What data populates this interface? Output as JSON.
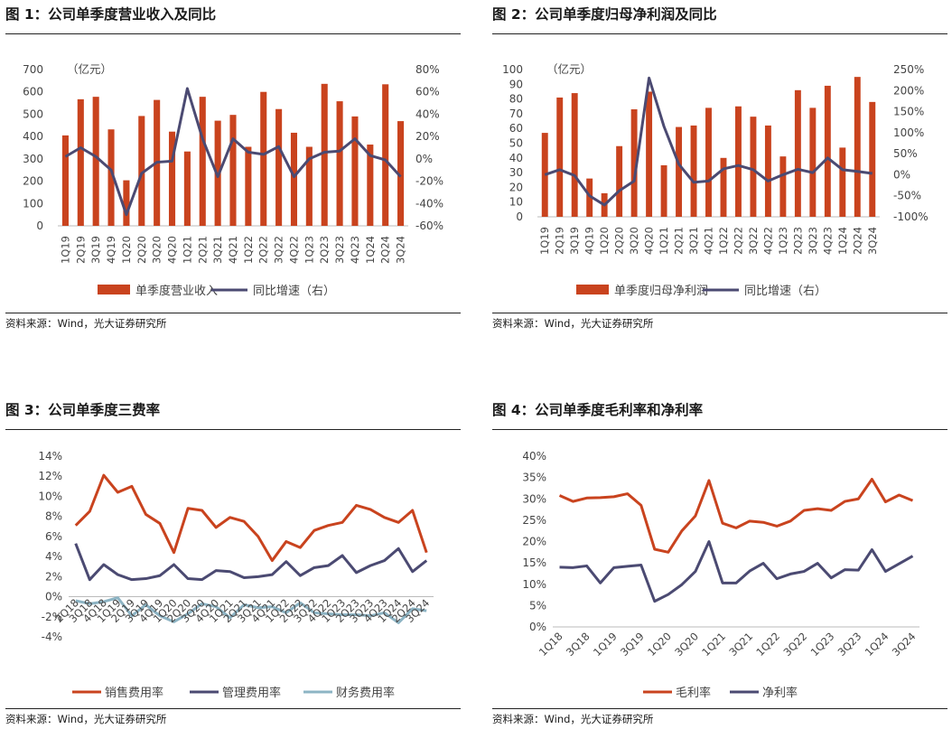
{
  "figures": [
    {
      "title": "图 1：公司单季度营业收入及同比",
      "source": "资料来源：Wind，光大证券研究所"
    },
    {
      "title": "图 2：公司单季度归母净利润及同比",
      "source": "资料来源：Wind，光大证券研究所"
    },
    {
      "title": "图 3：公司单季度三费率",
      "source": "资料来源：Wind，光大证券研究所"
    },
    {
      "title": "图 4：公司单季度毛利率和净利率",
      "source": "资料来源：Wind，光大证券研究所"
    }
  ],
  "colors": {
    "red": "#C9431E",
    "navy": "#4B4A72",
    "teal": "#8DB4C4"
  },
  "chart_data": [
    {
      "type": "bar",
      "categories": [
        "1Q19",
        "2Q19",
        "3Q19",
        "4Q19",
        "1Q20",
        "2Q20",
        "3Q20",
        "4Q20",
        "1Q21",
        "2Q21",
        "3Q21",
        "4Q21",
        "1Q22",
        "2Q22",
        "3Q22",
        "4Q22",
        "1Q23",
        "2Q23",
        "3Q23",
        "4Q23",
        "1Q24",
        "2Q24",
        "3Q24"
      ],
      "unit_label": "（亿元）",
      "ylim": [
        0,
        700
      ],
      "yticks": [
        "0",
        "100",
        "200",
        "300",
        "400",
        "500",
        "600",
        "700"
      ],
      "y2lim": [
        -60,
        80
      ],
      "y2ticks": [
        "-60%",
        "-40%",
        "-20%",
        "0%",
        "20%",
        "40%",
        "60%",
        "80%"
      ],
      "series": [
        {
          "name": "单季度营业收入",
          "axis": "left",
          "kind": "bar",
          "color": "#C9431E",
          "values": [
            405,
            567,
            578,
            432,
            204,
            492,
            564,
            422,
            333,
            578,
            471,
            497,
            354,
            600,
            523,
            417,
            354,
            636,
            558,
            490,
            364,
            634,
            469
          ]
        },
        {
          "name": "同比增速（右）",
          "axis": "right",
          "kind": "line",
          "color": "#4B4A72",
          "values": [
            2,
            10,
            2,
            -10,
            -50,
            -13,
            -3,
            -2,
            63,
            18,
            -16,
            18,
            6,
            4,
            11,
            -16,
            0,
            6,
            7,
            18,
            3,
            -1,
            -16
          ]
        }
      ],
      "legend_position": "bottom"
    },
    {
      "type": "bar",
      "categories": [
        "1Q19",
        "2Q19",
        "3Q19",
        "4Q19",
        "1Q20",
        "2Q20",
        "3Q20",
        "4Q20",
        "1Q21",
        "2Q21",
        "3Q21",
        "4Q21",
        "1Q22",
        "2Q22",
        "3Q22",
        "4Q22",
        "1Q23",
        "2Q23",
        "3Q23",
        "4Q23",
        "1Q24",
        "2Q24",
        "3Q24"
      ],
      "unit_label": "（亿元）",
      "ylim": [
        0,
        100
      ],
      "yticks": [
        "0",
        "10",
        "20",
        "30",
        "40",
        "50",
        "60",
        "70",
        "80",
        "90",
        "100"
      ],
      "y2lim": [
        -100,
        250
      ],
      "y2ticks": [
        "-100%",
        "-50%",
        "0%",
        "50%",
        "100%",
        "150%",
        "200%",
        "250%"
      ],
      "series": [
        {
          "name": "单季度归母净利润",
          "axis": "left",
          "kind": "bar",
          "color": "#C9431E",
          "values": [
            57,
            81,
            84,
            26,
            16,
            48,
            73,
            85,
            35,
            61,
            62,
            74,
            40,
            75,
            68,
            62,
            41,
            86,
            74,
            89,
            47,
            95,
            78
          ]
        },
        {
          "name": "同比增速（右）",
          "axis": "right",
          "kind": "line",
          "color": "#4B4A72",
          "values": [
            0,
            12,
            -2,
            -50,
            -72,
            -38,
            -15,
            230,
            115,
            25,
            -18,
            -15,
            14,
            22,
            12,
            -15,
            0,
            13,
            5,
            40,
            12,
            8,
            3
          ]
        }
      ],
      "legend_position": "bottom"
    },
    {
      "type": "line",
      "categories": [
        "2Q18",
        "3Q18",
        "4Q18",
        "1Q19",
        "2Q19",
        "3Q19",
        "4Q19",
        "1Q20",
        "2Q20",
        "3Q20",
        "4Q20",
        "1Q21",
        "2Q21",
        "3Q21",
        "4Q21",
        "1Q22",
        "2Q22",
        "3Q22",
        "4Q22",
        "1Q23",
        "2Q23",
        "3Q23",
        "4Q23",
        "1Q24",
        "2Q24",
        "3Q24"
      ],
      "ylim": [
        -4,
        14
      ],
      "yticks": [
        "-4%",
        "-2%",
        "0%",
        "2%",
        "4%",
        "6%",
        "8%",
        "10%",
        "12%",
        "14%"
      ],
      "series": [
        {
          "name": "销售费用率",
          "color": "#C9431E",
          "values": [
            7.1,
            8.5,
            12.1,
            10.4,
            11.0,
            8.2,
            7.3,
            4.4,
            8.8,
            8.6,
            6.9,
            7.9,
            7.5,
            6.0,
            3.6,
            5.5,
            4.9,
            6.6,
            7.1,
            7.4,
            9.1,
            8.7,
            7.9,
            7.4,
            8.6,
            4.4
          ]
        },
        {
          "name": "管理费用率",
          "color": "#4B4A72",
          "values": [
            5.3,
            1.7,
            3.2,
            2.2,
            1.7,
            1.8,
            2.1,
            3.2,
            1.8,
            1.7,
            2.6,
            2.5,
            1.9,
            2.0,
            2.2,
            3.5,
            2.1,
            2.9,
            3.1,
            4.1,
            2.4,
            3.1,
            3.6,
            4.8,
            2.5,
            3.6
          ]
        },
        {
          "name": "财务费用率",
          "color": "#8DB4C4",
          "values": [
            -0.4,
            -0.7,
            -0.5,
            -0.1,
            -1.9,
            -0.8,
            -1.9,
            -2.5,
            -1.7,
            -0.7,
            -1.0,
            -2.1,
            -0.8,
            -1.1,
            -1.0,
            -1.6,
            -0.6,
            -1.6,
            -1.7,
            -1.8,
            -1.8,
            -1.9,
            -1.6,
            -2.6,
            -1.2,
            -1.4
          ]
        }
      ],
      "legend_position": "bottom"
    },
    {
      "type": "line",
      "categories": [
        "1Q18",
        "2Q18",
        "3Q18",
        "4Q18",
        "1Q19",
        "2Q19",
        "3Q19",
        "4Q19",
        "1Q20",
        "2Q20",
        "3Q20",
        "4Q20",
        "1Q21",
        "2Q21",
        "3Q21",
        "4Q21",
        "1Q22",
        "2Q22",
        "3Q22",
        "4Q22",
        "1Q23",
        "2Q23",
        "3Q23",
        "4Q23",
        "1Q24",
        "2Q24",
        "3Q24"
      ],
      "tick_labels": [
        "1Q18",
        "3Q18",
        "1Q19",
        "3Q19",
        "1Q20",
        "3Q20",
        "1Q21",
        "3Q21",
        "1Q22",
        "3Q22",
        "1Q23",
        "3Q23",
        "1Q24",
        "3Q24"
      ],
      "ylim": [
        0,
        40
      ],
      "yticks": [
        "0%",
        "5%",
        "10%",
        "15%",
        "20%",
        "25%",
        "30%",
        "35%",
        "40%"
      ],
      "series": [
        {
          "name": "毛利率",
          "color": "#C9431E",
          "values": [
            30.8,
            29.4,
            30.2,
            30.3,
            30.5,
            31.2,
            28.5,
            18.2,
            17.5,
            22.5,
            26.0,
            34.3,
            24.3,
            23.2,
            24.8,
            24.5,
            23.6,
            24.8,
            27.3,
            27.7,
            27.3,
            29.4,
            30.0,
            34.6,
            29.3,
            30.9,
            29.6
          ]
        },
        {
          "name": "净利率",
          "color": "#4B4A72",
          "values": [
            14.0,
            13.9,
            14.3,
            10.3,
            13.9,
            14.2,
            14.5,
            6.0,
            7.6,
            9.9,
            13.0,
            20.0,
            10.3,
            10.3,
            13.1,
            14.9,
            11.3,
            12.4,
            13.0,
            14.9,
            11.5,
            13.4,
            13.3,
            18.1,
            13.0,
            14.8,
            16.6
          ]
        }
      ],
      "legend_position": "bottom"
    }
  ]
}
